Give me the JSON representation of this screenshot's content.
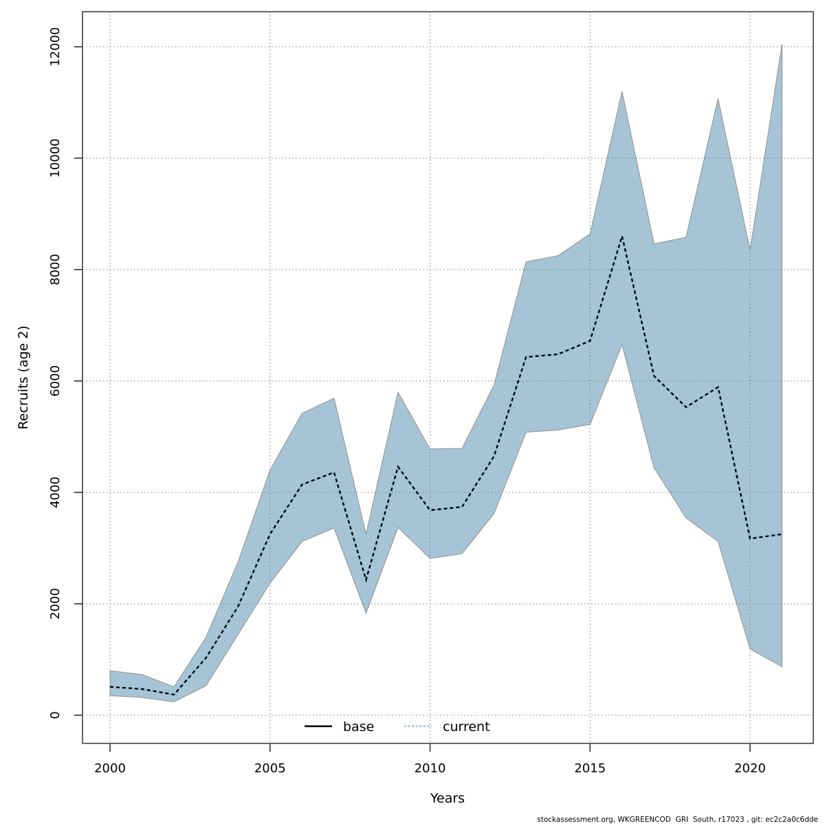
{
  "page": {
    "footer": "stockassessment.org, WKGREENCOD  GRI  South, r17023 , git: ec2c2a0c6dde"
  },
  "legend": {
    "items": [
      {
        "label": "base",
        "line_style": "solid",
        "color": "#000000"
      },
      {
        "label": "current",
        "line_style": "dotted",
        "color": "#8CC0E2"
      }
    ]
  },
  "chart_data": {
    "type": "line",
    "title": "",
    "xlabel": "Years",
    "ylabel": "Recruits (age 2)",
    "x": [
      2000,
      2001,
      2002,
      2003,
      2004,
      2005,
      2006,
      2007,
      2008,
      2009,
      2010,
      2011,
      2012,
      2013,
      2014,
      2015,
      2016,
      2017,
      2018,
      2019,
      2020,
      2021
    ],
    "x_ticks": [
      2000,
      2005,
      2010,
      2015,
      2020
    ],
    "y_ticks": [
      0,
      2000,
      4000,
      6000,
      8000,
      10000,
      12000
    ],
    "xlim": [
      1999.1,
      2022.0
    ],
    "ylim": [
      -500,
      12630
    ],
    "grid": "dotted",
    "legend_position": "bottom-center-inside",
    "series": [
      {
        "name": "base",
        "color": "#000000",
        "style": "solid",
        "values": [
          510,
          470,
          370,
          1030,
          1950,
          3250,
          4140,
          4360,
          2430,
          4460,
          3680,
          3740,
          4650,
          6430,
          6480,
          6720,
          8600,
          6090,
          5530,
          5890,
          3170,
          3250
        ]
      },
      {
        "name": "current",
        "color": "#8CC0E2",
        "style": "dotted",
        "values": [
          510,
          470,
          370,
          1030,
          1950,
          3250,
          4140,
          4360,
          2430,
          4460,
          3680,
          3740,
          4650,
          6430,
          6480,
          6720,
          8600,
          6090,
          5530,
          5890,
          3170,
          3250
        ]
      }
    ],
    "note": "base and current lines coincide exactly; dotted current overlays solid base",
    "confidence_band": {
      "series": "current",
      "color": "#A6C4D6",
      "edge_color": "#8f8f8f",
      "low": [
        350,
        320,
        240,
        530,
        1450,
        2370,
        3120,
        3360,
        1830,
        3370,
        2815,
        2900,
        3620,
        5080,
        5120,
        5220,
        6650,
        4440,
        3540,
        3120,
        1190,
        870
      ],
      "high": [
        800,
        730,
        510,
        1400,
        2750,
        4400,
        5420,
        5690,
        3250,
        5800,
        4780,
        4790,
        5930,
        8140,
        8250,
        8640,
        11200,
        8460,
        8580,
        11070,
        8350,
        12050
      ]
    }
  }
}
